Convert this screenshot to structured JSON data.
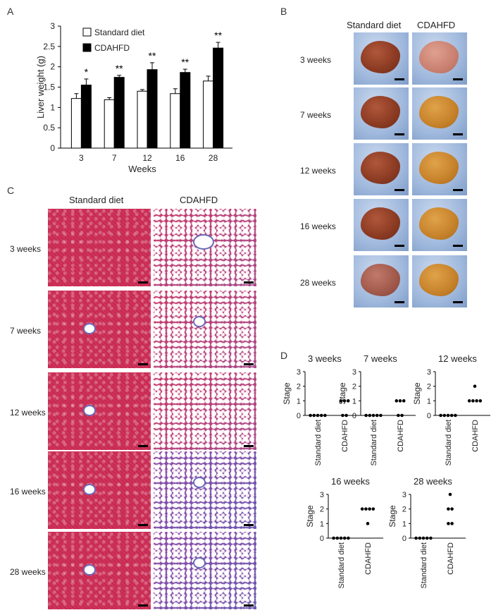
{
  "panels": {
    "a": "A",
    "b": "B",
    "c": "C",
    "d": "D"
  },
  "chart_data": [
    {
      "type": "bar",
      "panel": "A",
      "categories": [
        "3",
        "7",
        "12",
        "16",
        "28"
      ],
      "series": [
        {
          "name": "Standard diet",
          "values": [
            1.22,
            1.19,
            1.4,
            1.34,
            1.65
          ],
          "errors": [
            0.12,
            0.05,
            0.04,
            0.12,
            0.12
          ],
          "color": "#ffffff"
        },
        {
          "name": "CDAHFD",
          "values": [
            1.55,
            1.74,
            1.93,
            1.86,
            2.46
          ],
          "errors": [
            0.15,
            0.05,
            0.17,
            0.08,
            0.14
          ],
          "color": "#000000"
        }
      ],
      "significance": [
        "*",
        "**",
        "**",
        "**",
        "**"
      ],
      "xlabel": "Weeks",
      "ylabel": "Liver weight (g)",
      "ylim": [
        0,
        3
      ],
      "yticks": [
        "0",
        "0.5",
        "1",
        "1.5",
        "2",
        "2.5",
        "3"
      ],
      "legend": "top-left"
    },
    {
      "type": "scatter",
      "panel": "D",
      "title": "3 weeks",
      "ylabel": "Stage",
      "ylim": [
        0,
        3
      ],
      "yticks": [
        "0",
        "1",
        "2",
        "3"
      ],
      "categories": [
        "Standard diet",
        "CDAHFD"
      ],
      "points": [
        [
          0,
          0,
          0,
          0,
          0
        ],
        [
          0,
          0,
          1,
          1,
          1
        ]
      ]
    },
    {
      "type": "scatter",
      "panel": "D",
      "title": "7 weeks",
      "ylabel": "Stage",
      "ylim": [
        0,
        3
      ],
      "yticks": [
        "0",
        "1",
        "2",
        "3"
      ],
      "categories": [
        "Standard diet",
        "CDAHFD"
      ],
      "points": [
        [
          0,
          0,
          0,
          0,
          0
        ],
        [
          0,
          0,
          1,
          1,
          1
        ]
      ]
    },
    {
      "type": "scatter",
      "panel": "D",
      "title": "12 weeks",
      "ylabel": "Stage",
      "ylim": [
        0,
        3
      ],
      "yticks": [
        "0",
        "1",
        "2",
        "3"
      ],
      "categories": [
        "Standard diet",
        "CDAHFD"
      ],
      "points": [
        [
          0,
          0,
          0,
          0,
          0
        ],
        [
          1,
          1,
          1,
          1,
          2
        ]
      ]
    },
    {
      "type": "scatter",
      "panel": "D",
      "title": "16 weeks",
      "ylabel": "Stage",
      "ylim": [
        0,
        3
      ],
      "yticks": [
        "0",
        "1",
        "2",
        "3"
      ],
      "categories": [
        "Standard diet",
        "CDAHFD"
      ],
      "points": [
        [
          0,
          0,
          0,
          0,
          0
        ],
        [
          1,
          2,
          2,
          2,
          2
        ]
      ]
    },
    {
      "type": "scatter",
      "panel": "D",
      "title": "28 weeks",
      "ylabel": "Stage",
      "ylim": [
        0,
        3
      ],
      "yticks": [
        "0",
        "1",
        "2",
        "3"
      ],
      "categories": [
        "Standard diet",
        "CDAHFD"
      ],
      "points": [
        [
          0,
          0,
          0,
          0,
          0
        ],
        [
          1,
          1,
          2,
          2,
          3
        ]
      ]
    }
  ],
  "photos_b": {
    "columns": [
      "Standard diet",
      "CDAHFD"
    ],
    "rows": [
      "3 weeks",
      "7 weeks",
      "12 weeks",
      "16 weeks",
      "28 weeks"
    ]
  },
  "histology_c": {
    "columns": [
      "Standard diet",
      "CDAHFD"
    ],
    "rows": [
      "3 weeks",
      "7 weeks",
      "12 weeks",
      "16 weeks",
      "28 weeks"
    ]
  }
}
